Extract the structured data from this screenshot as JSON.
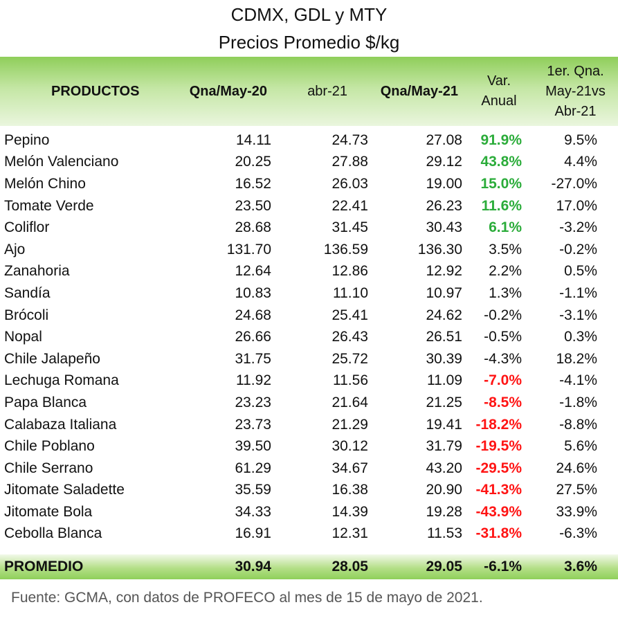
{
  "title_line1": "CDMX, GDL y MTY",
  "title_line2": "Precios Promedio $/kg",
  "headers": {
    "productos": "PRODUCTOS",
    "qna_may_20": "Qna/May-20",
    "abr_21": "abr-21",
    "qna_may_21": "Qna/May-21",
    "var_anual_1": "Var.",
    "var_anual_2": "Anual",
    "qna_vs_1": "1er. Qna.",
    "qna_vs_2": "May-21vs",
    "qna_vs_3": "Abr-21"
  },
  "colors": {
    "positive": "#2bac3a",
    "negative": "#ff1414",
    "header_green": "#8fce5a"
  },
  "rows": [
    {
      "producto": "Pepino",
      "may20": "14.11",
      "abr21": "24.73",
      "may21": "27.08",
      "var": "91.9%",
      "var_style": "green",
      "qna": "9.5%"
    },
    {
      "producto": "Melón Valenciano",
      "may20": "20.25",
      "abr21": "27.88",
      "may21": "29.12",
      "var": "43.8%",
      "var_style": "green",
      "qna": "4.4%"
    },
    {
      "producto": "Melón Chino",
      "may20": "16.52",
      "abr21": "26.03",
      "may21": "19.00",
      "var": "15.0%",
      "var_style": "green",
      "qna": "-27.0%"
    },
    {
      "producto": "Tomate Verde",
      "may20": "23.50",
      "abr21": "22.41",
      "may21": "26.23",
      "var": "11.6%",
      "var_style": "green",
      "qna": "17.0%"
    },
    {
      "producto": "Coliflor",
      "may20": "28.68",
      "abr21": "31.45",
      "may21": "30.43",
      "var": "6.1%",
      "var_style": "green",
      "qna": "-3.2%"
    },
    {
      "producto": "Ajo",
      "may20": "131.70",
      "abr21": "136.59",
      "may21": "136.30",
      "var": "3.5%",
      "var_style": "plain",
      "qna": "-0.2%"
    },
    {
      "producto": "Zanahoria",
      "may20": "12.64",
      "abr21": "12.86",
      "may21": "12.92",
      "var": "2.2%",
      "var_style": "plain",
      "qna": "0.5%"
    },
    {
      "producto": "Sandía",
      "may20": "10.83",
      "abr21": "11.10",
      "may21": "10.97",
      "var": "1.3%",
      "var_style": "plain",
      "qna": "-1.1%"
    },
    {
      "producto": "Brócoli",
      "may20": "24.68",
      "abr21": "25.41",
      "may21": "24.62",
      "var": "-0.2%",
      "var_style": "plain",
      "qna": "-3.1%"
    },
    {
      "producto": "Nopal",
      "may20": "26.66",
      "abr21": "26.43",
      "may21": "26.51",
      "var": "-0.5%",
      "var_style": "plain",
      "qna": "0.3%"
    },
    {
      "producto": "Chile Jalapeño",
      "may20": "31.75",
      "abr21": "25.72",
      "may21": "30.39",
      "var": "-4.3%",
      "var_style": "plain",
      "qna": "18.2%"
    },
    {
      "producto": "Lechuga Romana",
      "may20": "11.92",
      "abr21": "11.56",
      "may21": "11.09",
      "var": "-7.0%",
      "var_style": "red",
      "qna": "-4.1%"
    },
    {
      "producto": "Papa Blanca",
      "may20": "23.23",
      "abr21": "21.64",
      "may21": "21.25",
      "var": "-8.5%",
      "var_style": "red",
      "qna": "-1.8%"
    },
    {
      "producto": "Calabaza Italiana",
      "may20": "23.73",
      "abr21": "21.29",
      "may21": "19.41",
      "var": "-18.2%",
      "var_style": "red",
      "qna": "-8.8%"
    },
    {
      "producto": "Chile Poblano",
      "may20": "39.50",
      "abr21": "30.12",
      "may21": "31.79",
      "var": "-19.5%",
      "var_style": "red",
      "qna": "5.6%"
    },
    {
      "producto": "Chile Serrano",
      "may20": "61.29",
      "abr21": "34.67",
      "may21": "43.20",
      "var": "-29.5%",
      "var_style": "red",
      "qna": "24.6%"
    },
    {
      "producto": "Jitomate Saladette",
      "may20": "35.59",
      "abr21": "16.38",
      "may21": "20.90",
      "var": "-41.3%",
      "var_style": "red",
      "qna": "27.5%"
    },
    {
      "producto": "Jitomate Bola",
      "may20": "34.33",
      "abr21": "14.39",
      "may21": "19.28",
      "var": "-43.9%",
      "var_style": "red",
      "qna": "33.9%"
    },
    {
      "producto": "Cebolla Blanca",
      "may20": "16.91",
      "abr21": "12.31",
      "may21": "11.53",
      "var": "-31.8%",
      "var_style": "red",
      "qna": "-6.3%"
    }
  ],
  "promedio": {
    "label": "PROMEDIO",
    "may20": "30.94",
    "abr21": "28.05",
    "may21": "29.05",
    "var": "-6.1%",
    "qna": "3.6%"
  },
  "source": "Fuente: GCMA, con datos de PROFECO al mes de 15 de mayo de 2021."
}
